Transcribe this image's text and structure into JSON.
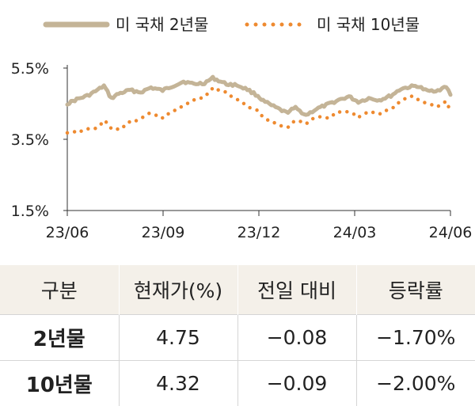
{
  "chart_data": {
    "type": "line",
    "title": "",
    "xlabel": "",
    "ylabel": "",
    "x_ticks": [
      "23/06",
      "23/09",
      "23/12",
      "24/03",
      "24/06"
    ],
    "x_range": [
      "2023-06-01",
      "2024-06-01"
    ],
    "ylim": [
      1.5,
      5.5
    ],
    "y_ticks": [
      1.5,
      3.5,
      5.5
    ],
    "y_tick_labels": [
      "1.5%",
      "3.5%",
      "5.5%"
    ],
    "grid": false,
    "legend_position": "top",
    "series": [
      {
        "name": "미 국채 2년물",
        "style": "solid",
        "color": "#c4b497",
        "points": [
          [
            "2023-06-01",
            4.5
          ],
          [
            "2023-06-10",
            4.62
          ],
          [
            "2023-06-20",
            4.72
          ],
          [
            "2023-06-30",
            4.88
          ],
          [
            "2023-07-06",
            5.0
          ],
          [
            "2023-07-13",
            4.65
          ],
          [
            "2023-07-20",
            4.78
          ],
          [
            "2023-07-31",
            4.88
          ],
          [
            "2023-08-10",
            4.82
          ],
          [
            "2023-08-20",
            4.95
          ],
          [
            "2023-08-31",
            4.87
          ],
          [
            "2023-09-10",
            5.0
          ],
          [
            "2023-09-20",
            5.12
          ],
          [
            "2023-09-30",
            5.05
          ],
          [
            "2023-10-10",
            5.08
          ],
          [
            "2023-10-18",
            5.22
          ],
          [
            "2023-10-31",
            5.05
          ],
          [
            "2023-11-10",
            5.02
          ],
          [
            "2023-11-20",
            4.9
          ],
          [
            "2023-11-30",
            4.72
          ],
          [
            "2023-12-05",
            4.58
          ],
          [
            "2023-12-15",
            4.42
          ],
          [
            "2023-12-27",
            4.25
          ],
          [
            "2024-01-05",
            4.38
          ],
          [
            "2024-01-15",
            4.18
          ],
          [
            "2024-01-25",
            4.35
          ],
          [
            "2024-02-05",
            4.48
          ],
          [
            "2024-02-15",
            4.6
          ],
          [
            "2024-02-25",
            4.7
          ],
          [
            "2024-03-05",
            4.55
          ],
          [
            "2024-03-15",
            4.65
          ],
          [
            "2024-03-25",
            4.6
          ],
          [
            "2024-04-05",
            4.72
          ],
          [
            "2024-04-15",
            4.92
          ],
          [
            "2024-04-25",
            4.98
          ],
          [
            "2024-04-30",
            5.0
          ],
          [
            "2024-05-10",
            4.85
          ],
          [
            "2024-05-20",
            4.88
          ],
          [
            "2024-05-28",
            4.97
          ],
          [
            "2024-06-01",
            4.75
          ]
        ]
      },
      {
        "name": "미 국채 10년물",
        "style": "dotted",
        "color": "#ee8a30",
        "points": [
          [
            "2023-06-01",
            3.7
          ],
          [
            "2023-06-10",
            3.72
          ],
          [
            "2023-06-20",
            3.78
          ],
          [
            "2023-06-30",
            3.82
          ],
          [
            "2023-07-06",
            4.05
          ],
          [
            "2023-07-13",
            3.82
          ],
          [
            "2023-07-20",
            3.78
          ],
          [
            "2023-07-31",
            3.98
          ],
          [
            "2023-08-10",
            4.08
          ],
          [
            "2023-08-20",
            4.25
          ],
          [
            "2023-08-31",
            4.12
          ],
          [
            "2023-09-10",
            4.28
          ],
          [
            "2023-09-20",
            4.45
          ],
          [
            "2023-09-30",
            4.6
          ],
          [
            "2023-10-10",
            4.7
          ],
          [
            "2023-10-18",
            4.92
          ],
          [
            "2023-10-31",
            4.8
          ],
          [
            "2023-11-10",
            4.62
          ],
          [
            "2023-11-20",
            4.42
          ],
          [
            "2023-11-30",
            4.3
          ],
          [
            "2023-12-05",
            4.12
          ],
          [
            "2023-12-15",
            3.98
          ],
          [
            "2023-12-27",
            3.82
          ],
          [
            "2024-01-05",
            4.02
          ],
          [
            "2024-01-15",
            3.95
          ],
          [
            "2024-01-25",
            4.12
          ],
          [
            "2024-02-05",
            4.1
          ],
          [
            "2024-02-15",
            4.25
          ],
          [
            "2024-02-25",
            4.28
          ],
          [
            "2024-03-05",
            4.12
          ],
          [
            "2024-03-15",
            4.3
          ],
          [
            "2024-03-25",
            4.22
          ],
          [
            "2024-04-05",
            4.35
          ],
          [
            "2024-04-15",
            4.6
          ],
          [
            "2024-04-25",
            4.7
          ],
          [
            "2024-04-30",
            4.65
          ],
          [
            "2024-05-10",
            4.48
          ],
          [
            "2024-05-20",
            4.42
          ],
          [
            "2024-05-28",
            4.55
          ],
          [
            "2024-06-01",
            4.32
          ]
        ]
      }
    ]
  },
  "table": {
    "headers": [
      "구분",
      "현재가(%)",
      "전일 대비",
      "등락률"
    ],
    "rows": [
      [
        "2년물",
        "4.75",
        "−0.08",
        "−1.70%"
      ],
      [
        "10년물",
        "4.32",
        "−0.09",
        "−2.00%"
      ]
    ]
  }
}
